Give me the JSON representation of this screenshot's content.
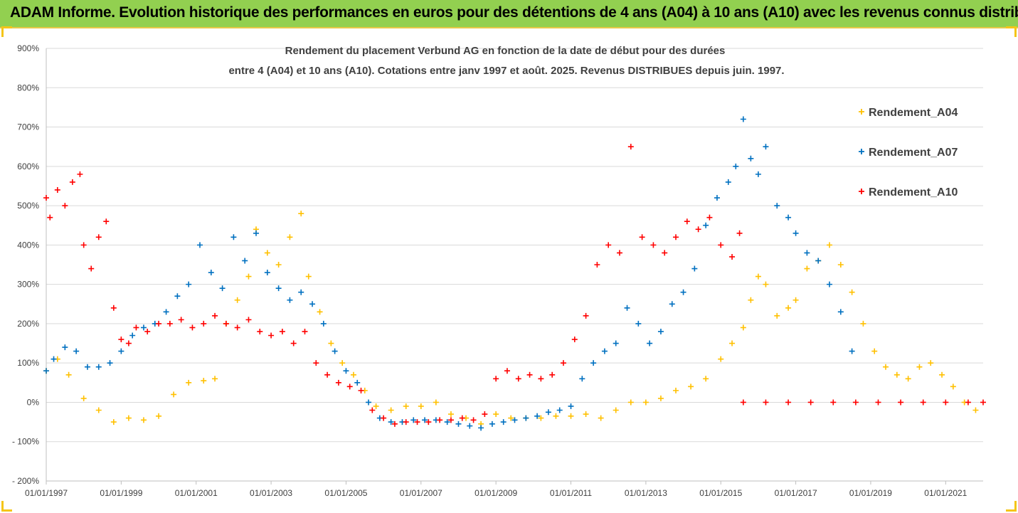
{
  "header": {
    "title": "ADAM Informe. Evolution historique des performances en euros pour des détentions de 4 ans (A04) à 10 ans (A10) avec les revenus connus distribués"
  },
  "chart_data": {
    "type": "scatter",
    "title_lines": [
      "Rendement du placement Verbund AG en fonction de la date de début pour des durées",
      "entre 4 (A04) et 10 ans (A10). Cotations entre janv 1997 et août. 2025. Revenus DISTRIBUES depuis juin. 1997."
    ],
    "y_unit": "%",
    "ylim": [
      -200,
      900
    ],
    "y_ticks": [
      -200,
      -100,
      0,
      100,
      200,
      300,
      400,
      500,
      600,
      700,
      800,
      900
    ],
    "y_tick_labels": [
      "- 200%",
      "- 100%",
      "0%",
      "100%",
      "200%",
      "300%",
      "400%",
      "500%",
      "600%",
      "700%",
      "800%",
      "900%"
    ],
    "xlim": [
      1997.0,
      2022.0
    ],
    "x_ticks": [
      1997,
      1999,
      2001,
      2003,
      2005,
      2007,
      2009,
      2011,
      2013,
      2015,
      2017,
      2019,
      2021
    ],
    "x_tick_labels": [
      "01/01/1997",
      "01/01/1999",
      "01/01/2001",
      "01/01/2003",
      "01/01/2005",
      "01/01/2007",
      "01/01/2009",
      "01/01/2011",
      "01/01/2013",
      "01/01/2015",
      "01/01/2017",
      "01/01/2019",
      "01/01/2021"
    ],
    "grid": "horizontal",
    "legend_position": "right",
    "marker": "+",
    "series": [
      {
        "name": "Rendement_A04",
        "color": "#ffc000",
        "x": [
          1997.0,
          1997.3,
          1997.6,
          1998.0,
          1998.4,
          1998.8,
          1999.2,
          1999.6,
          2000.0,
          2000.4,
          2000.8,
          2001.2,
          2001.5,
          2001.8,
          2002.1,
          2002.4,
          2002.6,
          2002.9,
          2003.2,
          2003.5,
          2003.8,
          2004.0,
          2004.3,
          2004.6,
          2004.9,
          2005.2,
          2005.5,
          2005.8,
          2006.2,
          2006.6,
          2007.0,
          2007.4,
          2007.8,
          2008.2,
          2008.6,
          2009.0,
          2009.4,
          2009.8,
          2010.2,
          2010.6,
          2011.0,
          2011.4,
          2011.8,
          2012.2,
          2012.6,
          2013.0,
          2013.4,
          2013.8,
          2014.2,
          2014.6,
          2015.0,
          2015.3,
          2015.6,
          2015.8,
          2016.0,
          2016.2,
          2016.5,
          2016.8,
          2017.0,
          2017.3,
          2017.6,
          2017.9,
          2018.2,
          2018.5,
          2018.8,
          2019.1,
          2019.4,
          2019.7,
          2020.0,
          2020.3,
          2020.6,
          2020.9,
          2021.2,
          2021.5,
          2021.8
        ],
        "y": [
          80,
          110,
          70,
          10,
          -20,
          -50,
          -40,
          -45,
          -35,
          20,
          50,
          55,
          60,
          200,
          260,
          320,
          440,
          380,
          350,
          420,
          480,
          320,
          230,
          150,
          100,
          70,
          30,
          -10,
          -20,
          -10,
          -10,
          0,
          -30,
          -40,
          -55,
          -30,
          -40,
          -40,
          -40,
          -35,
          -35,
          -30,
          -40,
          -20,
          0,
          0,
          10,
          30,
          40,
          60,
          110,
          150,
          190,
          260,
          320,
          300,
          220,
          240,
          260,
          340,
          360,
          400,
          350,
          280,
          200,
          130,
          90,
          70,
          60,
          90,
          100,
          70,
          40,
          0,
          -20
        ]
      },
      {
        "name": "Rendement_A07",
        "color": "#0070c0",
        "x": [
          1997.0,
          1997.2,
          1997.5,
          1997.8,
          1998.1,
          1998.4,
          1998.7,
          1999.0,
          1999.3,
          1999.6,
          1999.9,
          2000.2,
          2000.5,
          2000.8,
          2001.1,
          2001.4,
          2001.7,
          2002.0,
          2002.3,
          2002.6,
          2002.9,
          2003.2,
          2003.5,
          2003.8,
          2004.1,
          2004.4,
          2004.7,
          2005.0,
          2005.3,
          2005.6,
          2005.9,
          2006.2,
          2006.5,
          2006.8,
          2007.1,
          2007.4,
          2007.7,
          2008.0,
          2008.3,
          2008.6,
          2008.9,
          2009.2,
          2009.5,
          2009.8,
          2010.1,
          2010.4,
          2010.7,
          2011.0,
          2011.3,
          2011.6,
          2011.9,
          2012.2,
          2012.5,
          2012.8,
          2013.1,
          2013.4,
          2013.7,
          2014.0,
          2014.3,
          2014.6,
          2014.9,
          2015.2,
          2015.4,
          2015.6,
          2015.8,
          2016.0,
          2016.2,
          2016.5,
          2016.8,
          2017.0,
          2017.3,
          2017.6,
          2017.9,
          2018.2,
          2018.5
        ],
        "y": [
          80,
          110,
          140,
          130,
          90,
          90,
          100,
          130,
          170,
          190,
          200,
          230,
          270,
          300,
          400,
          330,
          290,
          420,
          360,
          430,
          330,
          290,
          260,
          280,
          250,
          200,
          130,
          80,
          50,
          0,
          -40,
          -50,
          -50,
          -45,
          -45,
          -45,
          -50,
          -55,
          -60,
          -65,
          -55,
          -50,
          -45,
          -40,
          -35,
          -25,
          -20,
          -10,
          60,
          100,
          130,
          150,
          240,
          200,
          150,
          180,
          250,
          280,
          340,
          450,
          520,
          560,
          600,
          720,
          620,
          580,
          650,
          500,
          470,
          430,
          380,
          360,
          300,
          230,
          130
        ]
      },
      {
        "name": "Rendement_A10",
        "color": "#ff0000",
        "x": [
          1997.0,
          1997.1,
          1997.3,
          1997.5,
          1997.7,
          1997.9,
          1998.0,
          1998.2,
          1998.4,
          1998.6,
          1998.8,
          1999.0,
          1999.2,
          1999.4,
          1999.7,
          2000.0,
          2000.3,
          2000.6,
          2000.9,
          2001.2,
          2001.5,
          2001.8,
          2002.1,
          2002.4,
          2002.7,
          2003.0,
          2003.3,
          2003.6,
          2003.9,
          2004.2,
          2004.5,
          2004.8,
          2005.1,
          2005.4,
          2005.7,
          2006.0,
          2006.3,
          2006.6,
          2006.9,
          2007.2,
          2007.5,
          2007.8,
          2008.1,
          2008.4,
          2008.7,
          2009.0,
          2009.3,
          2009.6,
          2009.9,
          2010.2,
          2010.5,
          2010.8,
          2011.1,
          2011.4,
          2011.7,
          2012.0,
          2012.3,
          2012.6,
          2012.9,
          2013.2,
          2013.5,
          2013.8,
          2014.1,
          2014.4,
          2014.7,
          2015.0,
          2015.3,
          2015.5,
          2015.6,
          2016.2,
          2016.8,
          2017.4,
          2018.0,
          2018.6,
          2019.2,
          2019.8,
          2020.4,
          2021.0,
          2021.6,
          2022.0
        ],
        "y": [
          520,
          470,
          540,
          500,
          560,
          580,
          400,
          340,
          420,
          460,
          240,
          160,
          150,
          190,
          180,
          200,
          200,
          210,
          190,
          200,
          220,
          200,
          190,
          210,
          180,
          170,
          180,
          150,
          180,
          100,
          70,
          50,
          40,
          30,
          -20,
          -40,
          -55,
          -50,
          -50,
          -50,
          -45,
          -45,
          -40,
          -45,
          -30,
          60,
          80,
          60,
          70,
          60,
          70,
          100,
          160,
          220,
          350,
          400,
          380,
          650,
          420,
          400,
          380,
          420,
          460,
          440,
          470,
          400,
          370,
          430,
          0,
          0,
          0,
          0,
          0,
          0,
          0,
          0,
          0,
          0,
          0,
          0
        ]
      }
    ]
  }
}
